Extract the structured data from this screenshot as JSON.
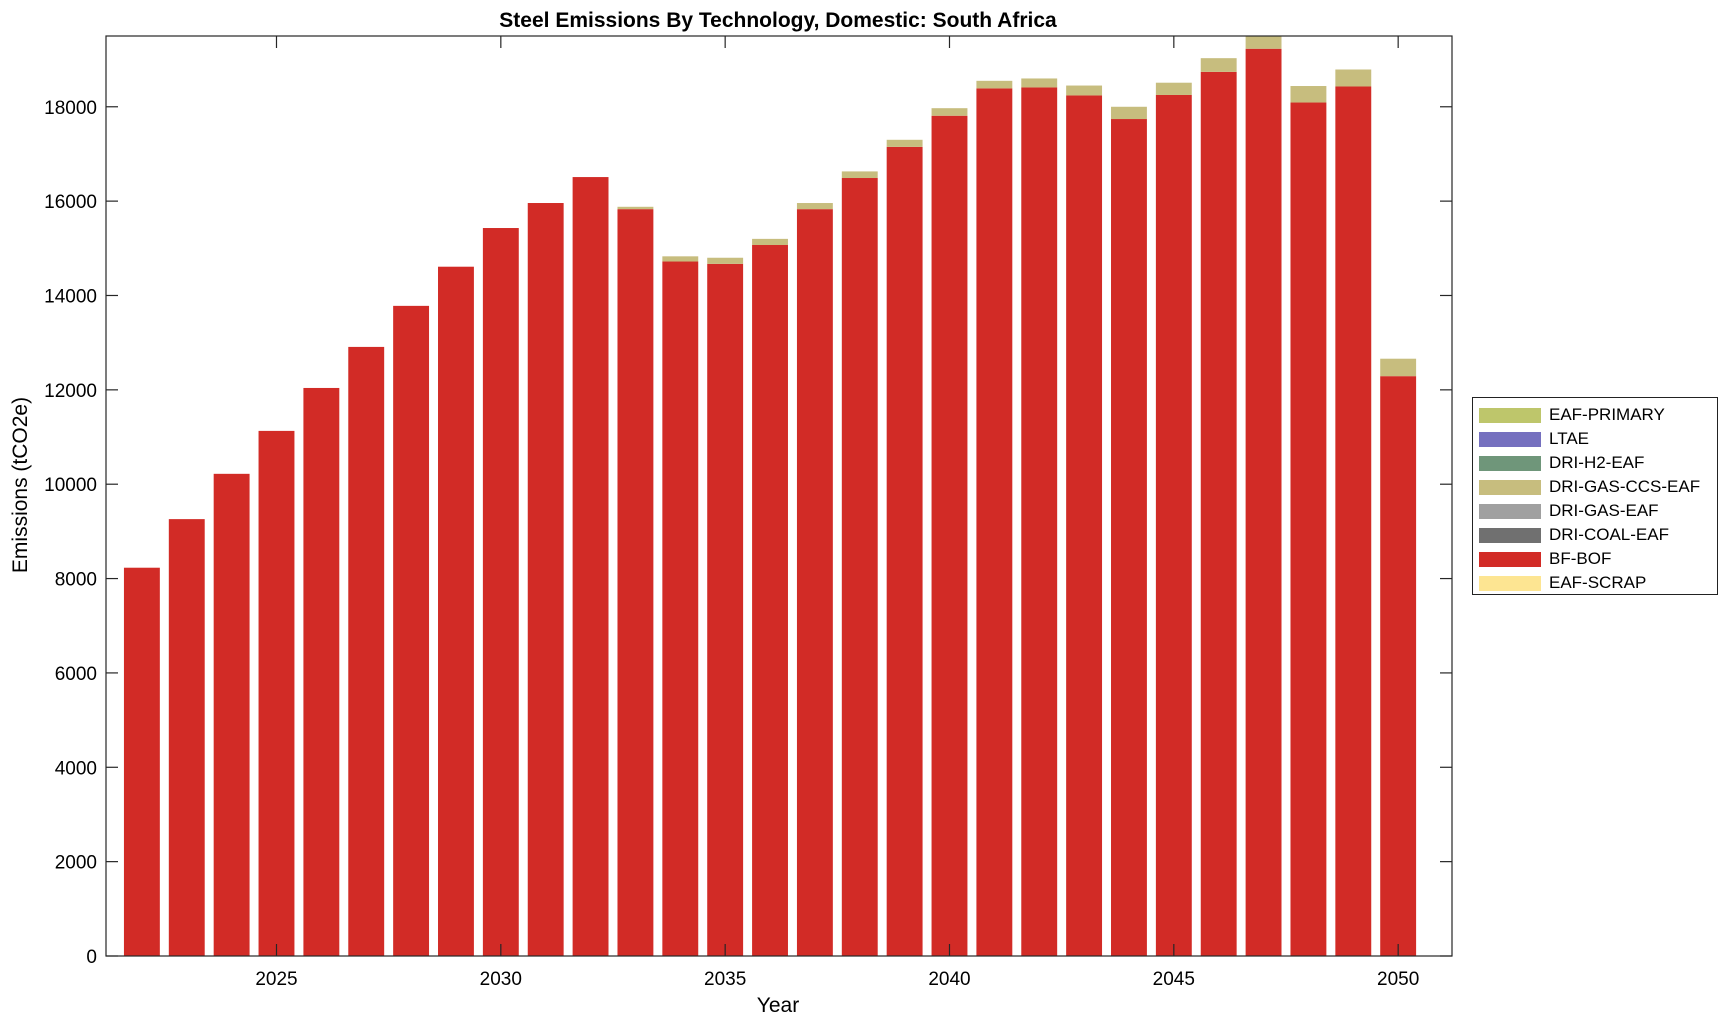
{
  "chart_data": {
    "type": "bar",
    "stacked": true,
    "title": "Steel Emissions By Technology, Domestic: South Africa",
    "xlabel": "Year",
    "ylabel": "Emissions (tCO2e)",
    "xlim": [
      2021.2,
      2051.2
    ],
    "ylim": [
      0,
      19500
    ],
    "xticks": [
      2025,
      2030,
      2035,
      2040,
      2045,
      2050
    ],
    "yticks": [
      0,
      2000,
      4000,
      6000,
      8000,
      10000,
      12000,
      14000,
      16000,
      18000
    ],
    "categories": [
      2022,
      2023,
      2024,
      2025,
      2026,
      2027,
      2028,
      2029,
      2030,
      2031,
      2032,
      2033,
      2034,
      2035,
      2036,
      2037,
      2038,
      2039,
      2040,
      2041,
      2042,
      2043,
      2044,
      2045,
      2046,
      2047,
      2048,
      2049,
      2050
    ],
    "series": [
      {
        "name": "EAF-SCRAP",
        "color": "#fde592",
        "values": [
          0,
          0,
          0,
          0,
          0,
          0,
          0,
          0,
          0,
          0,
          0,
          0,
          0,
          0,
          0,
          0,
          0,
          0,
          0,
          0,
          0,
          0,
          0,
          0,
          0,
          0,
          0,
          0,
          0
        ]
      },
      {
        "name": "BF-BOF",
        "color": "#d22b26",
        "values": [
          8230,
          9260,
          10220,
          11130,
          12040,
          12910,
          13780,
          14610,
          15430,
          15960,
          16510,
          15830,
          14720,
          14670,
          15070,
          15830,
          16490,
          17150,
          17810,
          18390,
          18410,
          18240,
          17740,
          18250,
          18740,
          19230,
          18090,
          18430,
          12290
        ]
      },
      {
        "name": "DRI-COAL-EAF",
        "color": "#707070",
        "values": [
          0,
          0,
          0,
          0,
          0,
          0,
          0,
          0,
          0,
          0,
          0,
          0,
          0,
          0,
          0,
          0,
          0,
          0,
          0,
          0,
          0,
          0,
          0,
          0,
          0,
          0,
          0,
          0,
          0
        ]
      },
      {
        "name": "DRI-GAS-EAF",
        "color": "#a0a0a0",
        "values": [
          0,
          0,
          0,
          0,
          0,
          0,
          0,
          0,
          0,
          0,
          0,
          0,
          0,
          0,
          0,
          0,
          0,
          0,
          0,
          0,
          0,
          0,
          0,
          0,
          0,
          0,
          0,
          0,
          0
        ]
      },
      {
        "name": "DRI-GAS-CCS-EAF",
        "color": "#c7bd7e",
        "values": [
          0,
          0,
          0,
          0,
          0,
          0,
          0,
          0,
          0,
          0,
          0,
          50,
          110,
          130,
          130,
          130,
          140,
          150,
          160,
          160,
          190,
          210,
          260,
          260,
          290,
          290,
          350,
          360,
          370
        ]
      },
      {
        "name": "DRI-H2-EAF",
        "color": "#6f967a",
        "values": [
          0,
          0,
          0,
          0,
          0,
          0,
          0,
          0,
          0,
          0,
          0,
          0,
          0,
          0,
          0,
          0,
          0,
          0,
          0,
          0,
          0,
          0,
          0,
          0,
          0,
          0,
          0,
          0,
          0
        ]
      },
      {
        "name": "LTAE",
        "color": "#7570bf",
        "values": [
          0,
          0,
          0,
          0,
          0,
          0,
          0,
          0,
          0,
          0,
          0,
          0,
          0,
          0,
          0,
          0,
          0,
          0,
          0,
          0,
          0,
          0,
          0,
          0,
          0,
          0,
          0,
          0,
          0
        ]
      },
      {
        "name": "EAF-PRIMARY",
        "color": "#bec66b",
        "values": [
          0,
          0,
          0,
          0,
          0,
          0,
          0,
          0,
          0,
          0,
          0,
          0,
          0,
          0,
          0,
          0,
          0,
          0,
          0,
          0,
          0,
          0,
          0,
          0,
          0,
          0,
          0,
          0,
          0
        ]
      }
    ],
    "legend": {
      "position": "outside-right",
      "order": [
        "EAF-PRIMARY",
        "LTAE",
        "DRI-H2-EAF",
        "DRI-GAS-CCS-EAF",
        "DRI-GAS-EAF",
        "DRI-COAL-EAF",
        "BF-BOF",
        "EAF-SCRAP"
      ]
    },
    "grid": false
  }
}
